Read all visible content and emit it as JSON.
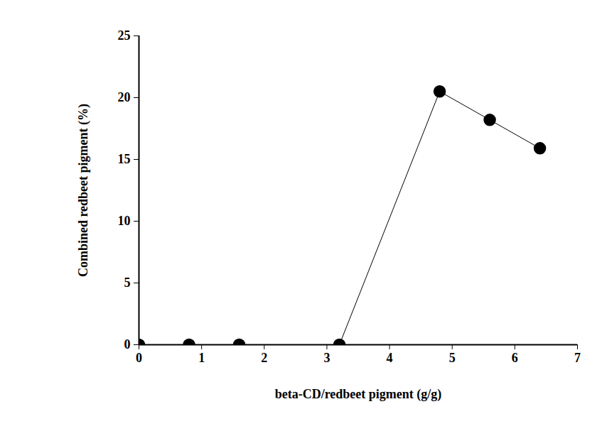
{
  "chart_data": {
    "type": "line",
    "x_label": "beta-CD/redbeet pigment (g/g)",
    "y_label": "Combined redbeet pigment (%)",
    "x": [
      0,
      0.8,
      1.6,
      3.2,
      4.8,
      5.6,
      6.4
    ],
    "series": [
      {
        "name": "Combined redbeet pigment",
        "color": "#000000",
        "marker": "circle",
        "line_style": "solid",
        "values": [
          0,
          0,
          0,
          0,
          20.5,
          18.2,
          15.9
        ]
      }
    ],
    "xlim": [
      0,
      7
    ],
    "xticks": [
      0,
      1,
      2,
      3,
      4,
      5,
      6,
      7
    ],
    "ylim": [
      0,
      25
    ],
    "yticks": [
      0,
      5,
      10,
      15,
      20,
      25
    ],
    "grid": false,
    "legend": false
  }
}
